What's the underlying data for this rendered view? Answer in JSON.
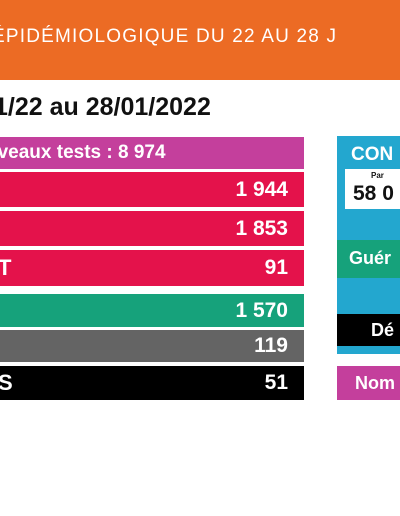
{
  "banner": {
    "title": "ÉPIDÉMIOLOGIQUE DU 22 AU 28 J"
  },
  "date_range": "1/22 au 28/01/2022",
  "rows": [
    {
      "label": "uveaux tests :  8 974",
      "value": "",
      "color": "#c43f9c"
    },
    {
      "label": "",
      "value": "1 944",
      "color": "#e4124b"
    },
    {
      "label": "",
      "value": "1 853",
      "color": "#e4124b"
    },
    {
      "label": "T",
      "value": "91",
      "color": "#e4124b"
    },
    {
      "label": "",
      "value": "1 570",
      "color": "#16a27b"
    },
    {
      "label": "",
      "value": "119",
      "color": "#646464"
    },
    {
      "label": "S",
      "value": "51",
      "color": "#000000"
    }
  ],
  "right_panel": {
    "header": "CON",
    "sub_label": "Par",
    "big_value": "58 0",
    "gueris": "Guér",
    "deces": "Dé",
    "nombre": "Nom"
  }
}
